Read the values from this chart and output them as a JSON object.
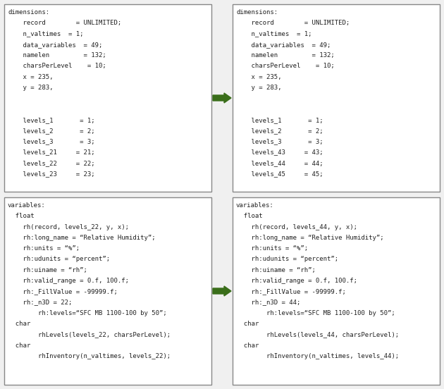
{
  "bg_color": "#f0f0f0",
  "box_border_color": "#888888",
  "text_color": "#222222",
  "arrow_color": "#3a6e1a",
  "top_left_lines": [
    "dimensions:",
    "    record        = UNLIMITED;",
    "    n_valtimes  = 1;",
    "    data_variables  = 49;",
    "    namelen         = 132;",
    "    charsPerLevel    = 10;",
    "    x = 235,",
    "    y = 283,",
    "",
    "",
    "    levels_1       = 1;",
    "    levels_2       = 2;",
    "    levels_3       = 3;",
    "    levels_21     = 21;",
    "    levels_22     = 22;",
    "    levels_23     = 23;"
  ],
  "top_right_lines": [
    "dimensions:",
    "    record        = UNLIMITED;",
    "    n_valtimes  = 1;",
    "    data_variables  = 49;",
    "    namelen         = 132;",
    "    charsPerLevel    = 10;",
    "    x = 235,",
    "    y = 283,",
    "",
    "",
    "    levels_1       = 1;",
    "    levels_2       = 2;",
    "    levels_3       = 3;",
    "    levels_43     = 43;",
    "    levels_44     = 44;",
    "    levels_45     = 45;"
  ],
  "bot_left_lines": [
    "variables:",
    "  float",
    "    rh(record, levels_22, y, x);",
    "    rh:long_name = “Relative Humidity”;",
    "    rh:units = “%”;",
    "    rh:udunits = “percent”;",
    "    rh:uiname = “rh”;",
    "    rh:valid_range = 0.f, 100.f;",
    "    rh:_FillValue = -99999.f;",
    "    rh:_n3D = 22;",
    "        rh:levels=“SFC MB 1100-100 by 50”;",
    "  char",
    "        rhLevels(levels_22, charsPerLevel);",
    "  char",
    "        rhInventory(n_valtimes, levels_22);"
  ],
  "bot_right_lines": [
    "variables:",
    "  float",
    "    rh(record, levels_44, y, x);",
    "    rh:long_name = “Relative Humidity”;",
    "    rh:units = “%”;",
    "    rh:udunits = “percent”;",
    "    rh:uiname = “rh”;",
    "    rh:valid_range = 0.f, 100.f;",
    "    rh:_FillValue = -99999.f;",
    "    rh:_n3D = 44;",
    "        rh:levels=“SFC MB 1100-100 by 50”;",
    "  char",
    "        rhLevels(levels_44, charsPerLevel);",
    "  char",
    "        rhInventory(n_valtimes, levels_44);"
  ],
  "font_size": 6.5,
  "mono_font": "DejaVu Sans Mono",
  "fig_width": 6.3,
  "fig_height": 5.52,
  "dpi": 100
}
